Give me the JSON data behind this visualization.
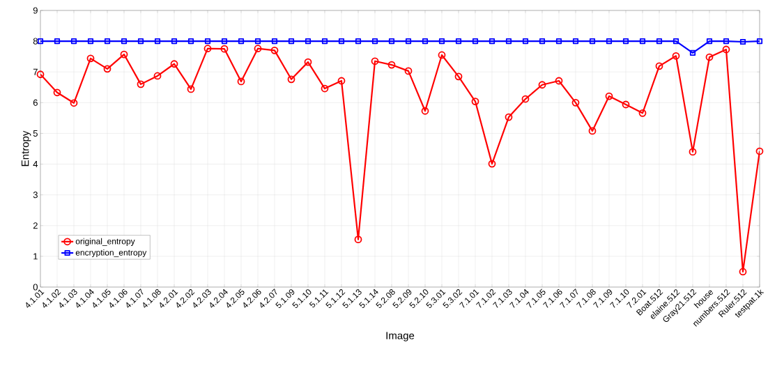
{
  "chart_data": {
    "type": "line",
    "xlabel": "Image",
    "ylabel": "Entropy",
    "categories": [
      "4.1.01",
      "4.1.02",
      "4.1.03",
      "4.1.04",
      "4.1.05",
      "4.1.06",
      "4.1.07",
      "4.1.08",
      "4.2.01",
      "4.2.02",
      "4.2.03",
      "4.2.04",
      "4.2.05",
      "4.2.06",
      "4.2.07",
      "5.1.09",
      "5.1.10",
      "5.1.11",
      "5.1.12",
      "5.1.13",
      "5.1.14",
      "5.2.08",
      "5.2.09",
      "5.2.10",
      "5.3.01",
      "5.3.02",
      "7.1.01",
      "7.1.02",
      "7.1.03",
      "7.1.04",
      "7.1.05",
      "7.1.06",
      "7.1.07",
      "7.1.08",
      "7.1.09",
      "7.1.10",
      "7.2.01",
      "Boat.512",
      "elaine.512",
      "Gray21.512",
      "house",
      "numbers.512",
      "Ruler.512",
      "testpat.1k"
    ],
    "series": [
      {
        "name": "original_entropy",
        "color": "#ff0000",
        "marker": "circle",
        "values": [
          6.92,
          6.33,
          5.99,
          7.44,
          7.1,
          7.57,
          6.6,
          6.87,
          7.26,
          6.44,
          7.76,
          7.75,
          6.69,
          7.76,
          7.7,
          6.76,
          7.32,
          6.46,
          6.71,
          1.55,
          7.35,
          7.23,
          7.03,
          5.73,
          7.55,
          6.85,
          6.04,
          4.01,
          5.53,
          6.12,
          6.58,
          6.71,
          6.0,
          5.08,
          6.21,
          5.94,
          5.66,
          7.19,
          7.52,
          4.4,
          7.48,
          7.73,
          0.5,
          4.42
        ]
      },
      {
        "name": "encryption_entropy",
        "color": "#0000ff",
        "marker": "square",
        "values": [
          8.0,
          8.0,
          8.0,
          8.0,
          8.0,
          8.0,
          8.0,
          8.0,
          8.0,
          8.0,
          8.0,
          8.0,
          8.0,
          8.0,
          8.0,
          8.0,
          8.0,
          8.0,
          8.0,
          8.0,
          8.0,
          8.0,
          8.0,
          8.0,
          8.0,
          8.0,
          8.0,
          8.0,
          8.0,
          8.0,
          8.0,
          8.0,
          8.0,
          8.0,
          8.0,
          8.0,
          8.0,
          8.0,
          8.0,
          7.62,
          8.0,
          8.0,
          7.98,
          8.0
        ]
      }
    ],
    "ylim": [
      0,
      9
    ],
    "yticks": [
      0,
      1,
      2,
      3,
      4,
      5,
      6,
      7,
      8,
      9
    ],
    "grid": true,
    "legend": "bottom left",
    "line_style": "solid"
  }
}
